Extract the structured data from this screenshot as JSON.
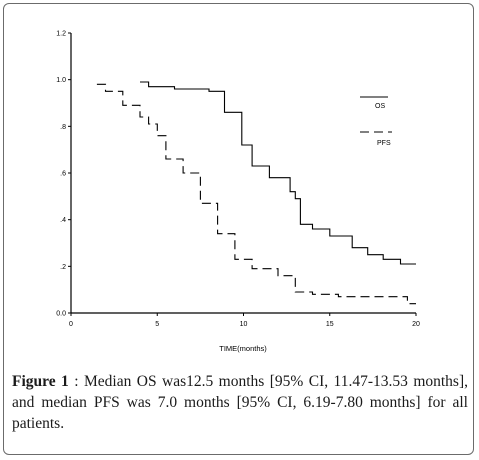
{
  "chart_data": {
    "type": "line",
    "title": "",
    "xlabel": "TIME(months)",
    "ylabel": "",
    "xlim": [
      0,
      20
    ],
    "ylim": [
      0,
      1.2
    ],
    "x_ticks": [
      0,
      5,
      10,
      15,
      20
    ],
    "x_tick_labels": [
      "0",
      "5",
      "10",
      "15",
      "20"
    ],
    "y_ticks": [
      0.0,
      0.2,
      0.4,
      0.6,
      0.8,
      1.0,
      1.2
    ],
    "y_tick_labels": [
      "0.0",
      ".2",
      ".4",
      ".6",
      ".8",
      "1.0",
      "1.2"
    ],
    "grid": false,
    "legend_position": "top-right",
    "series": [
      {
        "name": "OS",
        "style": "solid",
        "color": "#000000",
        "x": [
          4.0,
          4.5,
          6.0,
          8.0,
          8.9,
          9.9,
          10.5,
          11.5,
          12.7,
          13.0,
          13.3,
          14.0,
          15.0,
          16.3,
          17.2,
          18.1,
          19.1,
          20.0
        ],
        "y": [
          0.99,
          0.97,
          0.96,
          0.95,
          0.86,
          0.72,
          0.63,
          0.58,
          0.52,
          0.49,
          0.38,
          0.36,
          0.33,
          0.28,
          0.25,
          0.23,
          0.21,
          0.21
        ]
      },
      {
        "name": "PFS",
        "style": "dashed",
        "color": "#000000",
        "x": [
          1.5,
          2.0,
          3.0,
          4.0,
          4.5,
          5.0,
          5.5,
          6.5,
          7.5,
          8.5,
          9.5,
          10.5,
          12.0,
          13.0,
          14.0,
          15.5,
          16.5,
          17.5,
          19.5,
          20.0
        ],
        "y": [
          0.98,
          0.95,
          0.89,
          0.84,
          0.81,
          0.76,
          0.66,
          0.6,
          0.47,
          0.34,
          0.23,
          0.19,
          0.16,
          0.09,
          0.08,
          0.07,
          0.07,
          0.07,
          0.04,
          0.04
        ]
      }
    ]
  },
  "caption": {
    "label": "Figure 1",
    "text": " : Median OS was12.5 months [95% CI, 11.47-13.53 months], and median PFS was 7.0 months [95% CI, 6.19-7.80 months] for all patients."
  }
}
